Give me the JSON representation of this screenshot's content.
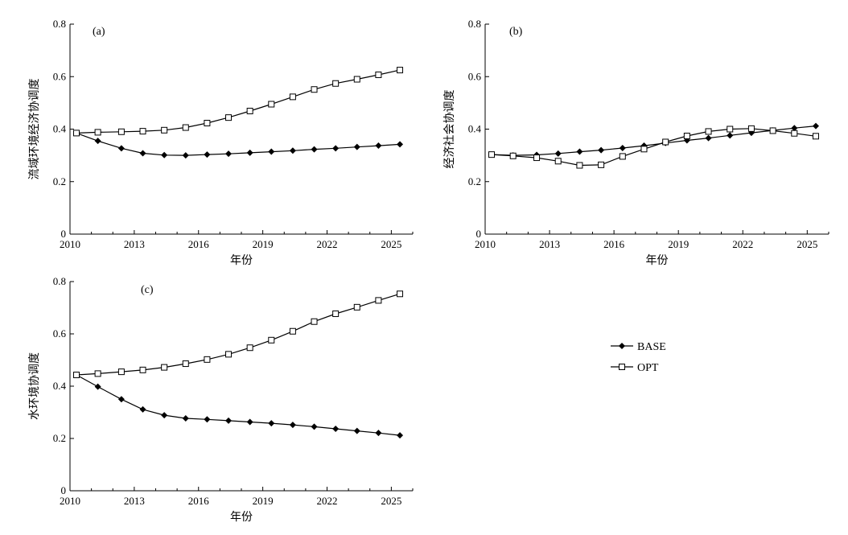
{
  "chart_data": [
    {
      "type": "line",
      "panel_label": "(a)",
      "xlabel": "年份",
      "ylabel": "流域环境经济协调度",
      "xlim": [
        2010,
        2026
      ],
      "ylim": [
        0,
        0.8
      ],
      "xticks": [
        "2010",
        "2013",
        "2016",
        "2019",
        "2022",
        "2025"
      ],
      "yticks": [
        "0",
        "0.2",
        "0.4",
        "0.6",
        "0.8"
      ],
      "x": [
        2010.3,
        2011.3,
        2012.4,
        2013.4,
        2014.4,
        2015.4,
        2016.4,
        2017.4,
        2018.4,
        2019.4,
        2020.4,
        2021.4,
        2022.4,
        2023.4,
        2024.4,
        2025.4
      ],
      "series": [
        {
          "name": "BASE",
          "values": [
            0.385,
            0.355,
            0.327,
            0.308,
            0.301,
            0.3,
            0.303,
            0.306,
            0.31,
            0.314,
            0.318,
            0.323,
            0.327,
            0.332,
            0.337,
            0.342
          ]
        },
        {
          "name": "OPT",
          "values": [
            0.385,
            0.388,
            0.39,
            0.392,
            0.396,
            0.406,
            0.423,
            0.444,
            0.469,
            0.495,
            0.523,
            0.551,
            0.574,
            0.59,
            0.607,
            0.625
          ]
        }
      ]
    },
    {
      "type": "line",
      "panel_label": "(b)",
      "xlabel": "年份",
      "ylabel": "经济社会协调度",
      "xlim": [
        2010,
        2026
      ],
      "ylim": [
        0,
        0.8
      ],
      "xticks": [
        "2010",
        "2013",
        "2016",
        "2019",
        "2022",
        "2025"
      ],
      "yticks": [
        "0",
        "0.2",
        "0.4",
        "0.6",
        "0.8"
      ],
      "x": [
        2010.3,
        2011.3,
        2012.4,
        2013.4,
        2014.4,
        2015.4,
        2016.4,
        2017.4,
        2018.4,
        2019.4,
        2020.4,
        2021.4,
        2022.4,
        2023.4,
        2024.4,
        2025.4
      ],
      "series": [
        {
          "name": "BASE",
          "values": [
            0.303,
            0.3,
            0.302,
            0.307,
            0.314,
            0.32,
            0.328,
            0.337,
            0.347,
            0.357,
            0.366,
            0.376,
            0.386,
            0.395,
            0.404,
            0.412
          ]
        },
        {
          "name": "OPT",
          "values": [
            0.303,
            0.298,
            0.291,
            0.278,
            0.262,
            0.264,
            0.296,
            0.324,
            0.351,
            0.374,
            0.391,
            0.4,
            0.402,
            0.394,
            0.384,
            0.373
          ]
        }
      ]
    },
    {
      "type": "line",
      "panel_label": "(c)",
      "xlabel": "年份",
      "ylabel": "水环境协调度",
      "xlim": [
        2010,
        2026
      ],
      "ylim": [
        0,
        0.8
      ],
      "xticks": [
        "2010",
        "2013",
        "2016",
        "2019",
        "2022",
        "2025"
      ],
      "yticks": [
        "0",
        "0.2",
        "0.4",
        "0.6",
        "0.8"
      ],
      "x": [
        2010.3,
        2011.3,
        2012.4,
        2013.4,
        2014.4,
        2015.4,
        2016.4,
        2017.4,
        2018.4,
        2019.4,
        2020.4,
        2021.4,
        2022.4,
        2023.4,
        2024.4,
        2025.4
      ],
      "series": [
        {
          "name": "BASE",
          "values": [
            0.443,
            0.398,
            0.35,
            0.311,
            0.289,
            0.277,
            0.273,
            0.268,
            0.263,
            0.258,
            0.252,
            0.245,
            0.237,
            0.229,
            0.221,
            0.212
          ]
        },
        {
          "name": "OPT",
          "values": [
            0.443,
            0.448,
            0.455,
            0.462,
            0.472,
            0.486,
            0.502,
            0.522,
            0.547,
            0.576,
            0.61,
            0.647,
            0.677,
            0.702,
            0.728,
            0.753
          ]
        }
      ]
    }
  ],
  "legend": {
    "placement": "right of panel (c)",
    "items": [
      {
        "name": "BASE",
        "marker": "filled-diamond"
      },
      {
        "name": "OPT",
        "marker": "open-square"
      }
    ]
  }
}
